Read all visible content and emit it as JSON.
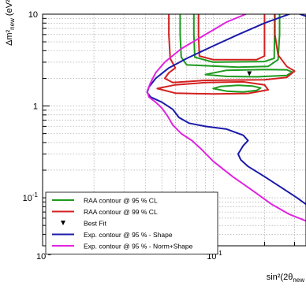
{
  "chart_data": {
    "type": "line",
    "xscale": "log",
    "yscale": "log",
    "xlim": [
      0.01,
      0.35
    ],
    "ylim": [
      0.03,
      10
    ],
    "grid": true,
    "x_ticks": [
      {
        "v": 0.01,
        "label": "10",
        "exp": "-2"
      },
      {
        "v": 0.1,
        "label": "10",
        "exp": "-1"
      }
    ],
    "y_ticks": [
      {
        "v": 0.1,
        "label": "10",
        "exp": "-1"
      },
      {
        "v": 1,
        "label": "1",
        "exp": ""
      },
      {
        "v": 10,
        "label": "10",
        "exp": ""
      }
    ],
    "xlabel": "sin²(2θ",
    "xlabel_sub": "new",
    "ylabel": "Δm²",
    "ylabel_sub": "new",
    "ylabel_unit": "(eV²)",
    "legend_position": "bottom-left",
    "series": [
      {
        "name": "RAA contour @ 95 % CL",
        "color": "#1e9a1e",
        "segments": [
          [
            [
              0.064,
              10
            ],
            [
              0.064,
              6
            ],
            [
              0.065,
              3.4
            ],
            [
              0.07,
              2.8
            ],
            [
              0.14,
              2.65
            ],
            [
              0.21,
              2.7
            ],
            [
              0.24,
              3.2
            ],
            [
              0.245,
              6
            ],
            [
              0.245,
              10
            ]
          ],
          [
            [
              0.077,
              10
            ],
            [
              0.077,
              6
            ],
            [
              0.078,
              3.4
            ],
            [
              0.1,
              3.0
            ],
            [
              0.2,
              3.05
            ],
            [
              0.228,
              3.3
            ],
            [
              0.229,
              6
            ],
            [
              0.229,
              10
            ]
          ],
          [
            [
              0.1,
              1.55
            ],
            [
              0.12,
              1.45
            ],
            [
              0.15,
              1.42
            ],
            [
              0.18,
              1.48
            ],
            [
              0.19,
              1.57
            ],
            [
              0.17,
              1.65
            ],
            [
              0.14,
              1.68
            ],
            [
              0.11,
              1.63
            ],
            [
              0.1,
              1.55
            ]
          ],
          [
            [
              0.09,
              2.2
            ],
            [
              0.12,
              2.1
            ],
            [
              0.18,
              2.08
            ],
            [
              0.27,
              2.15
            ],
            [
              0.29,
              2.35
            ],
            [
              0.27,
              2.48
            ],
            [
              0.2,
              2.5
            ],
            [
              0.12,
              2.45
            ],
            [
              0.09,
              2.2
            ]
          ]
        ]
      },
      {
        "name": "RAA contour @ 99 % CL",
        "color": "#d42020",
        "segments": [
          [
            [
              0.055,
              10
            ],
            [
              0.055,
              6
            ],
            [
              0.056,
              3.3
            ],
            [
              0.06,
              2.6
            ],
            [
              0.055,
              2.3
            ],
            [
              0.052,
              2.0
            ],
            [
              0.058,
              1.8
            ],
            [
              0.09,
              1.9
            ],
            [
              0.2,
              1.93
            ],
            [
              0.27,
              2.05
            ],
            [
              0.3,
              2.4
            ],
            [
              0.27,
              2.7
            ],
            [
              0.24,
              3.6
            ],
            [
              0.23,
              6
            ],
            [
              0.23,
              10
            ]
          ],
          [
            [
              0.082,
              10
            ],
            [
              0.082,
              6
            ],
            [
              0.083,
              3.5
            ],
            [
              0.1,
              3.2
            ],
            [
              0.18,
              3.2
            ],
            [
              0.2,
              3.5
            ],
            [
              0.2,
              6
            ],
            [
              0.2,
              10
            ]
          ],
          [
            [
              0.047,
              1.55
            ],
            [
              0.06,
              1.38
            ],
            [
              0.1,
              1.35
            ],
            [
              0.16,
              1.37
            ],
            [
              0.21,
              1.5
            ],
            [
              0.2,
              1.7
            ],
            [
              0.15,
              1.83
            ],
            [
              0.09,
              1.8
            ],
            [
              0.06,
              1.7
            ],
            [
              0.047,
              1.55
            ]
          ]
        ]
      },
      {
        "name": "Best Fit",
        "color": "#000000",
        "marker": "triangle-down",
        "points": [
          [
            0.163,
            2.25
          ]
        ]
      },
      {
        "name": "Exp. contour @ 95 % - Shape",
        "color": "#1a1aaa",
        "segments": [
          [
            [
              0.35,
              9.5
            ],
            [
              0.3,
              10.5
            ],
            [
              0.2,
              8
            ],
            [
              0.14,
              6
            ],
            [
              0.1,
              4.5
            ],
            [
              0.07,
              3.3
            ],
            [
              0.055,
              2.6
            ],
            [
              0.046,
              2.0
            ],
            [
              0.042,
              1.6
            ],
            [
              0.041,
              1.4
            ],
            [
              0.043,
              1.25
            ],
            [
              0.05,
              1.1
            ],
            [
              0.058,
              0.92
            ],
            [
              0.063,
              0.75
            ],
            [
              0.072,
              0.65
            ],
            [
              0.09,
              0.6
            ],
            [
              0.12,
              0.56
            ],
            [
              0.15,
              0.48
            ],
            [
              0.16,
              0.42
            ],
            [
              0.15,
              0.37
            ],
            [
              0.14,
              0.3
            ],
            [
              0.145,
              0.26
            ],
            [
              0.16,
              0.22
            ],
            [
              0.2,
              0.17
            ],
            [
              0.25,
              0.13
            ],
            [
              0.31,
              0.1
            ],
            [
              0.35,
              0.085
            ]
          ]
        ]
      },
      {
        "name": "Exp. contour @ 95 % - Norm+Shape",
        "color": "#e024e0",
        "segments": [
          [
            [
              0.155,
              10
            ],
            [
              0.12,
              8.2
            ],
            [
              0.09,
              6
            ],
            [
              0.065,
              4.2
            ],
            [
              0.052,
              3.0
            ],
            [
              0.046,
              2.3
            ],
            [
              0.043,
              1.8
            ],
            [
              0.041,
              1.45
            ],
            [
              0.042,
              1.25
            ],
            [
              0.046,
              1.1
            ],
            [
              0.05,
              0.95
            ],
            [
              0.054,
              0.78
            ],
            [
              0.058,
              0.62
            ],
            [
              0.065,
              0.5
            ],
            [
              0.075,
              0.42
            ],
            [
              0.085,
              0.34
            ],
            [
              0.1,
              0.25
            ],
            [
              0.13,
              0.17
            ],
            [
              0.17,
              0.12
            ],
            [
              0.22,
              0.085
            ],
            [
              0.28,
              0.066
            ],
            [
              0.35,
              0.056
            ]
          ]
        ]
      }
    ]
  }
}
